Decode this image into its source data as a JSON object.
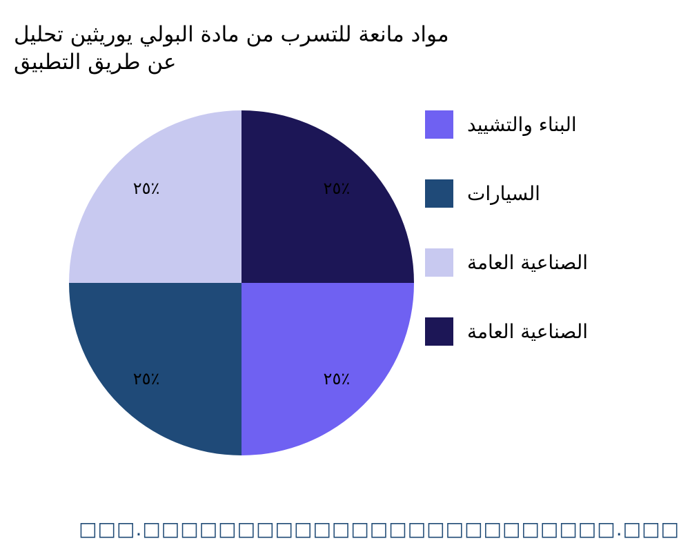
{
  "chart_data": {
    "type": "pie",
    "title_lines": [
      "مواد مانعة للتسرب من مادة البولي يوريثين تحليل",
      "عن طريق التطبيق"
    ],
    "categories": [
      "البناء والتشييد",
      "السيارات",
      "الصناعية العامة",
      "الصناعية العامة"
    ],
    "values": [
      25,
      25,
      25,
      25
    ],
    "data_labels": [
      "٢٥٪",
      "٢٥٪",
      "٢٥٪",
      "٢٥٪"
    ],
    "colors": [
      "#6f61f2",
      "#1f4a78",
      "#c8c9f0",
      "#1c1656"
    ],
    "start": "3 o'clock",
    "direction": "clockwise",
    "legend_placement": "right"
  },
  "footer": "□□□.□□□□□□□□□□□□□□□□□□□□□□□□□.□□□"
}
